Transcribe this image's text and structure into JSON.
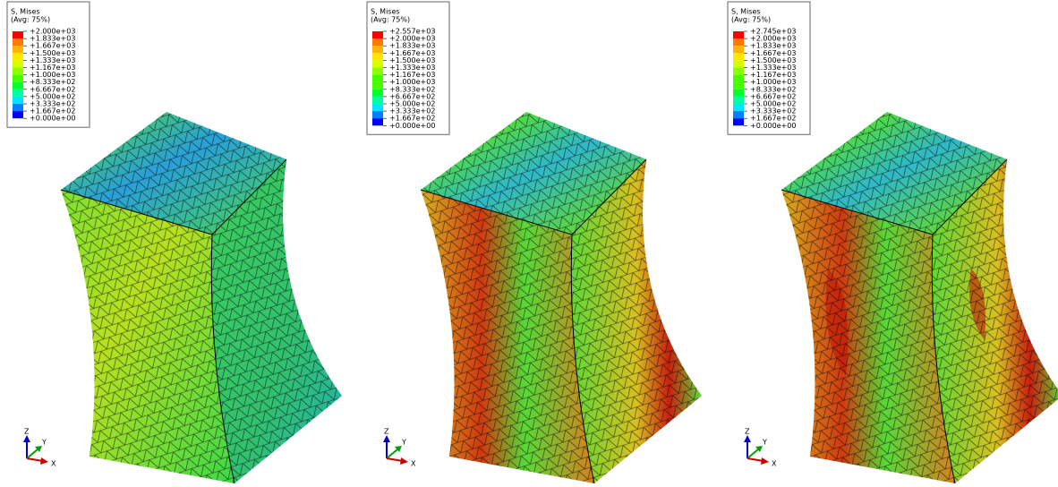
{
  "legend_colors": [
    "#ff0000",
    "#ff7a00",
    "#ffb400",
    "#ffe800",
    "#d6ff00",
    "#8cff00",
    "#44ff00",
    "#00ff2e",
    "#00ff9e",
    "#00e6ff",
    "#0080ff",
    "#0000ff"
  ],
  "panels": [
    {
      "legend": {
        "title": "S, Mises",
        "subtitle": "(Avg: 75%)",
        "labels": [
          "+2.000e+03",
          "+1.833e+03",
          "+1.667e+03",
          "+1.500e+03",
          "+1.333e+03",
          "+1.167e+03",
          "+1.000e+03",
          "+8.333e+02",
          "+6.667e+02",
          "+5.000e+02",
          "+3.333e+02",
          "+1.667e+02",
          "+0.000e+00"
        ]
      },
      "triad": {
        "z": "Z",
        "y": "Y",
        "x": "X"
      }
    },
    {
      "legend": {
        "title": "S, Mises",
        "subtitle": "(Avg: 75%)",
        "labels": [
          "+2.557e+03",
          "+2.000e+03",
          "+1.833e+03",
          "+1.667e+03",
          "+1.500e+03",
          "+1.333e+03",
          "+1.167e+03",
          "+1.000e+03",
          "+8.333e+02",
          "+6.667e+02",
          "+5.000e+02",
          "+3.333e+02",
          "+1.667e+02",
          "+0.000e+00"
        ]
      },
      "triad": {
        "z": "Z",
        "y": "Y",
        "x": "X"
      }
    },
    {
      "legend": {
        "title": "S, Mises",
        "subtitle": "(Avg: 75%)",
        "labels": [
          "+2.745e+03",
          "+2.000e+03",
          "+1.833e+03",
          "+1.667e+03",
          "+1.500e+03",
          "+1.333e+03",
          "+1.167e+03",
          "+1.000e+03",
          "+8.333e+02",
          "+6.667e+02",
          "+5.000e+02",
          "+3.333e+02",
          "+1.667e+02",
          "+0.000e+00"
        ]
      },
      "triad": {
        "z": "Z",
        "y": "Y",
        "x": "X"
      }
    }
  ]
}
